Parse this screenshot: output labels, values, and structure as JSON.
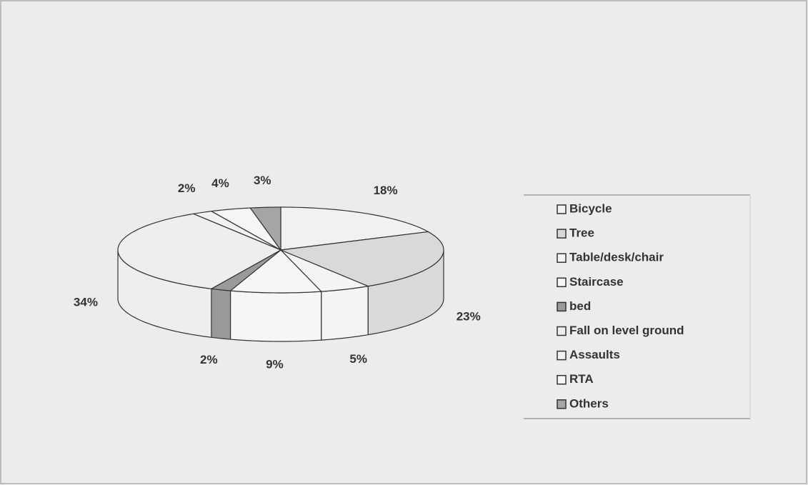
{
  "chart_data": {
    "type": "pie",
    "categories": [
      "Bicycle",
      "Tree",
      "Table/desk/chair",
      "Staircase",
      "bed",
      "Fall on level ground",
      "Assaults",
      "RTA",
      "Others"
    ],
    "values": [
      18,
      23,
      5,
      9,
      2,
      34,
      2,
      4,
      3
    ],
    "value_labels": [
      "18%",
      "23%",
      "5%",
      "9%",
      "2%",
      "34%",
      "2%",
      "4%",
      "3%"
    ],
    "colors": [
      "#f1f1f1",
      "#d9d9d9",
      "#f4f4f4",
      "#f6f6f6",
      "#9a9a9a",
      "#eeeeee",
      "#f2f2f2",
      "#f5f5f5",
      "#a5a5a5"
    ],
    "legend": "right"
  }
}
